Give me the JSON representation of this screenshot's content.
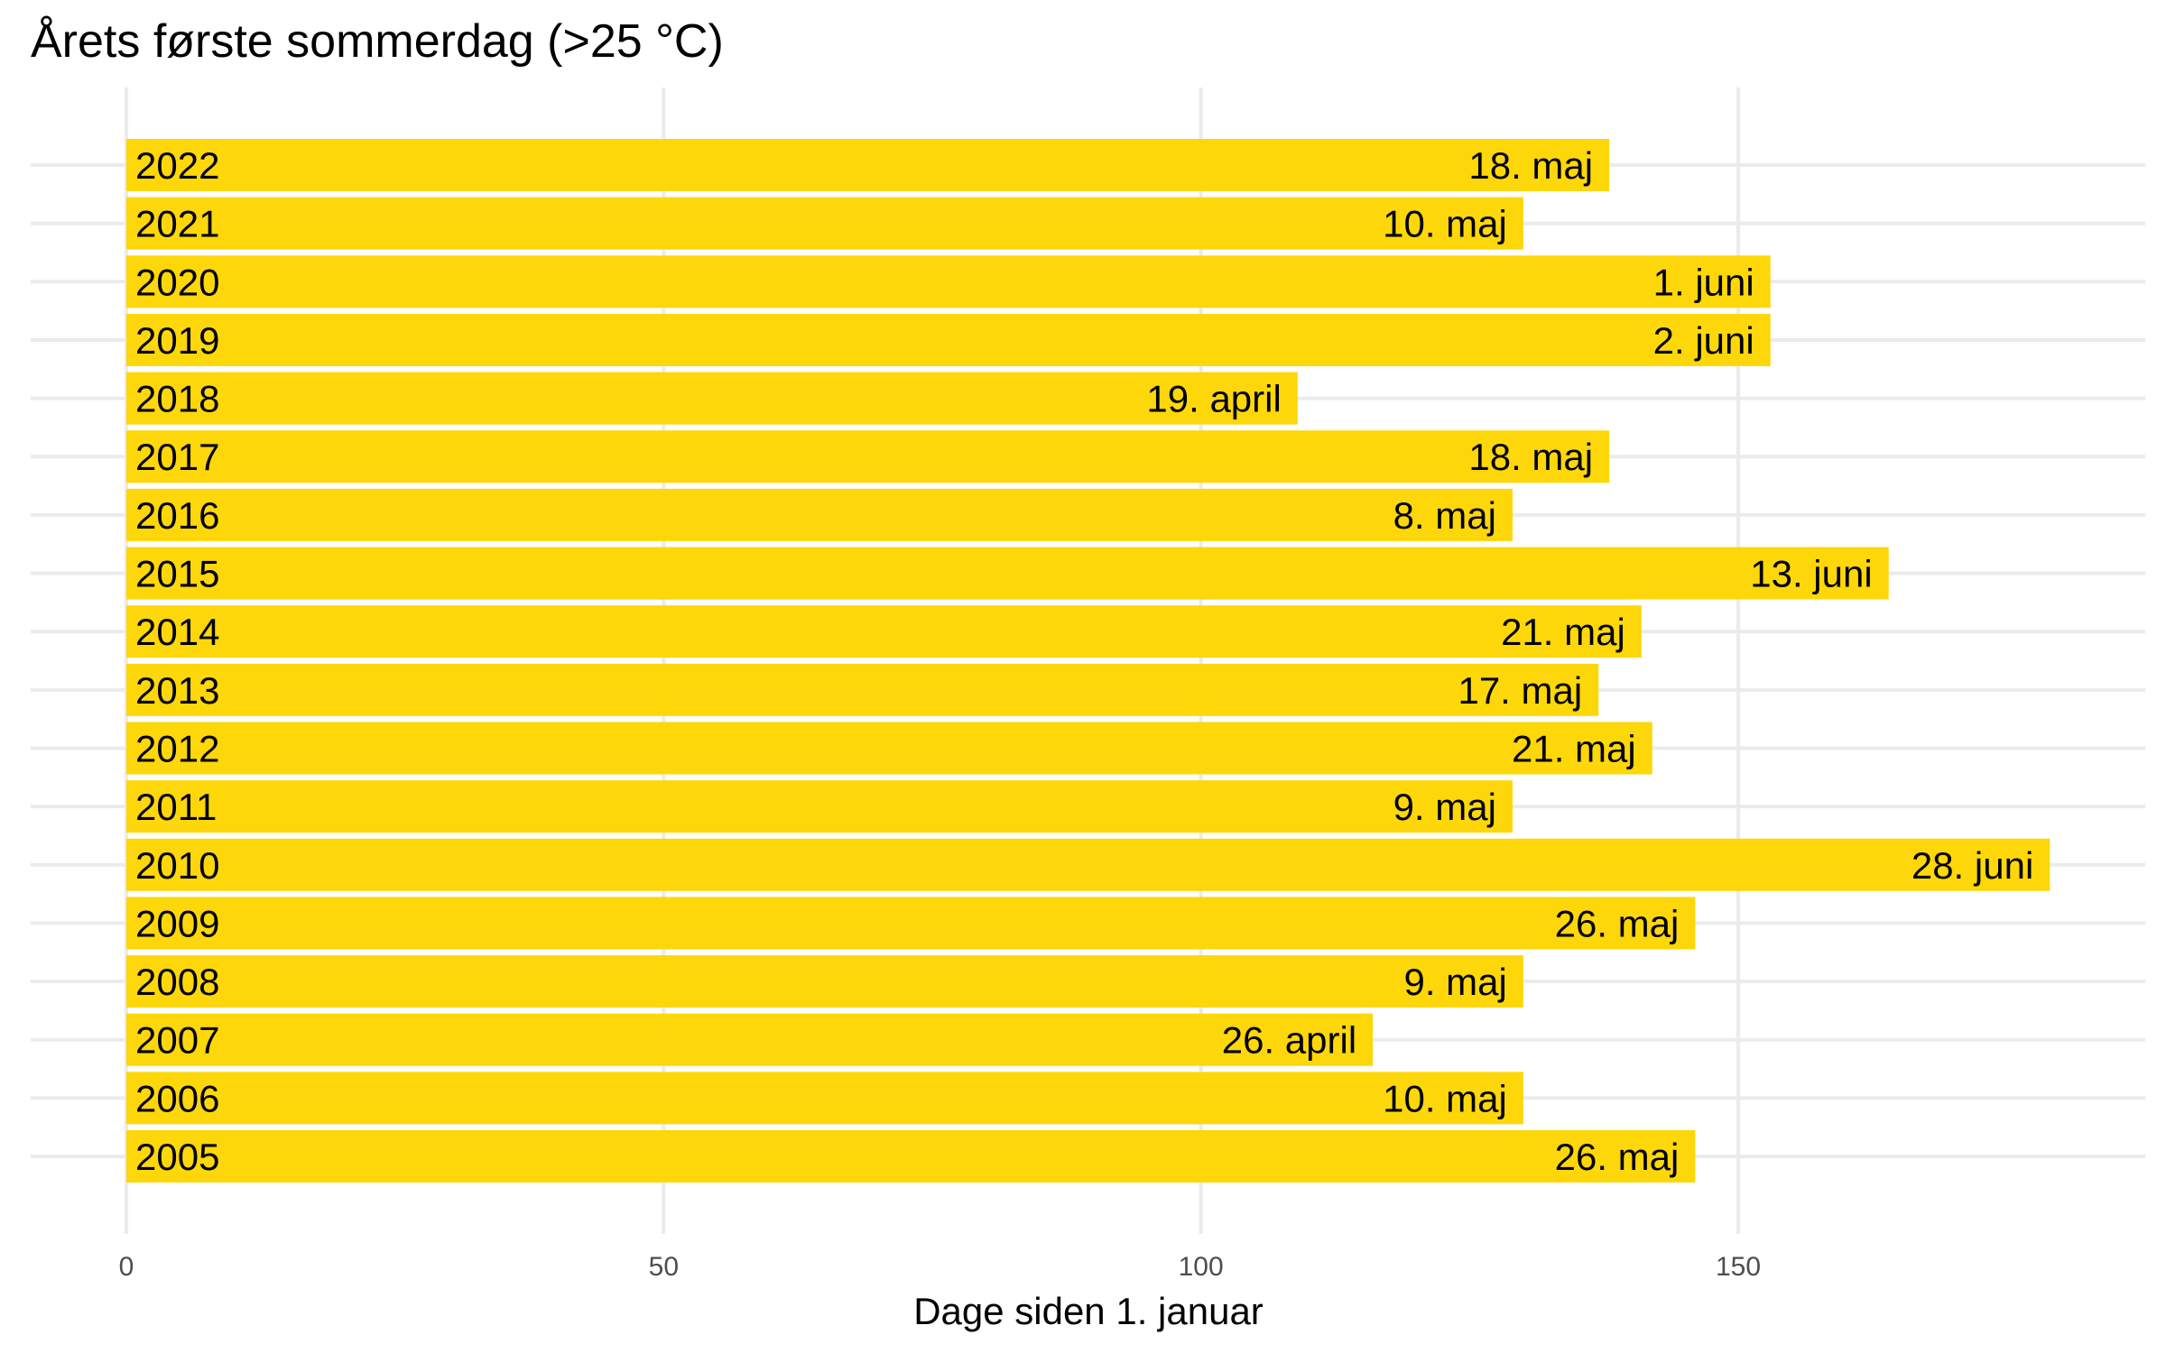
{
  "chart_data": {
    "type": "bar",
    "orientation": "horizontal",
    "title": "Årets første sommerdag (>25 °C)",
    "xlabel": "Dage siden 1. januar",
    "ylabel": "",
    "xlim": [
      0,
      188
    ],
    "xticks": [
      0,
      50,
      100,
      150
    ],
    "xtick_labels": [
      "0",
      "50",
      "100",
      "150"
    ],
    "grid": true,
    "legend": "none",
    "bar_color": "#FDD709",
    "categories": [
      "2022",
      "2021",
      "2020",
      "2019",
      "2018",
      "2017",
      "2016",
      "2015",
      "2014",
      "2013",
      "2012",
      "2011",
      "2010",
      "2009",
      "2008",
      "2007",
      "2006",
      "2005"
    ],
    "values": [
      138,
      130,
      153,
      153,
      109,
      138,
      129,
      164,
      141,
      137,
      142,
      129,
      179,
      146,
      130,
      116,
      130,
      146
    ],
    "labels": [
      "18. maj",
      "10. maj",
      "1. juni",
      "2. juni",
      "19. april",
      "18. maj",
      "8. maj",
      "13. juni",
      "21. maj",
      "17. maj",
      "21. maj",
      "9. maj",
      "28. juni",
      "26. maj",
      "9. maj",
      "26. april",
      "10. maj",
      "26. maj"
    ]
  }
}
